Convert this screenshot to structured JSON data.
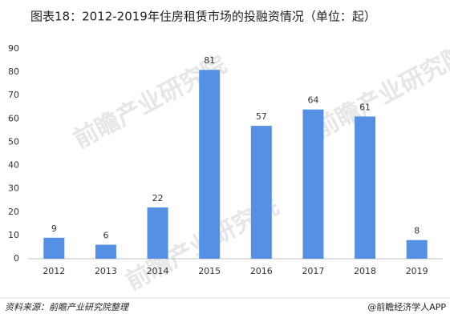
{
  "chart_data": {
    "type": "bar",
    "title": "图表18：2012-2019年住房租赁市场的投融资情况（单位：起）",
    "categories": [
      "2012",
      "2013",
      "2014",
      "2015",
      "2016",
      "2017",
      "2018",
      "2019"
    ],
    "values": [
      9,
      6,
      22,
      81,
      57,
      64,
      61,
      8
    ],
    "color": "#5590e4",
    "ylim": [
      0,
      90
    ],
    "yticks": [
      0,
      10,
      20,
      30,
      40,
      50,
      60,
      70,
      80,
      90
    ],
    "grid": false,
    "watermark": "前瞻产业研究院",
    "source": "资料来源：前瞻产业研究院整理",
    "credit": "@前瞻经济学人APP"
  }
}
